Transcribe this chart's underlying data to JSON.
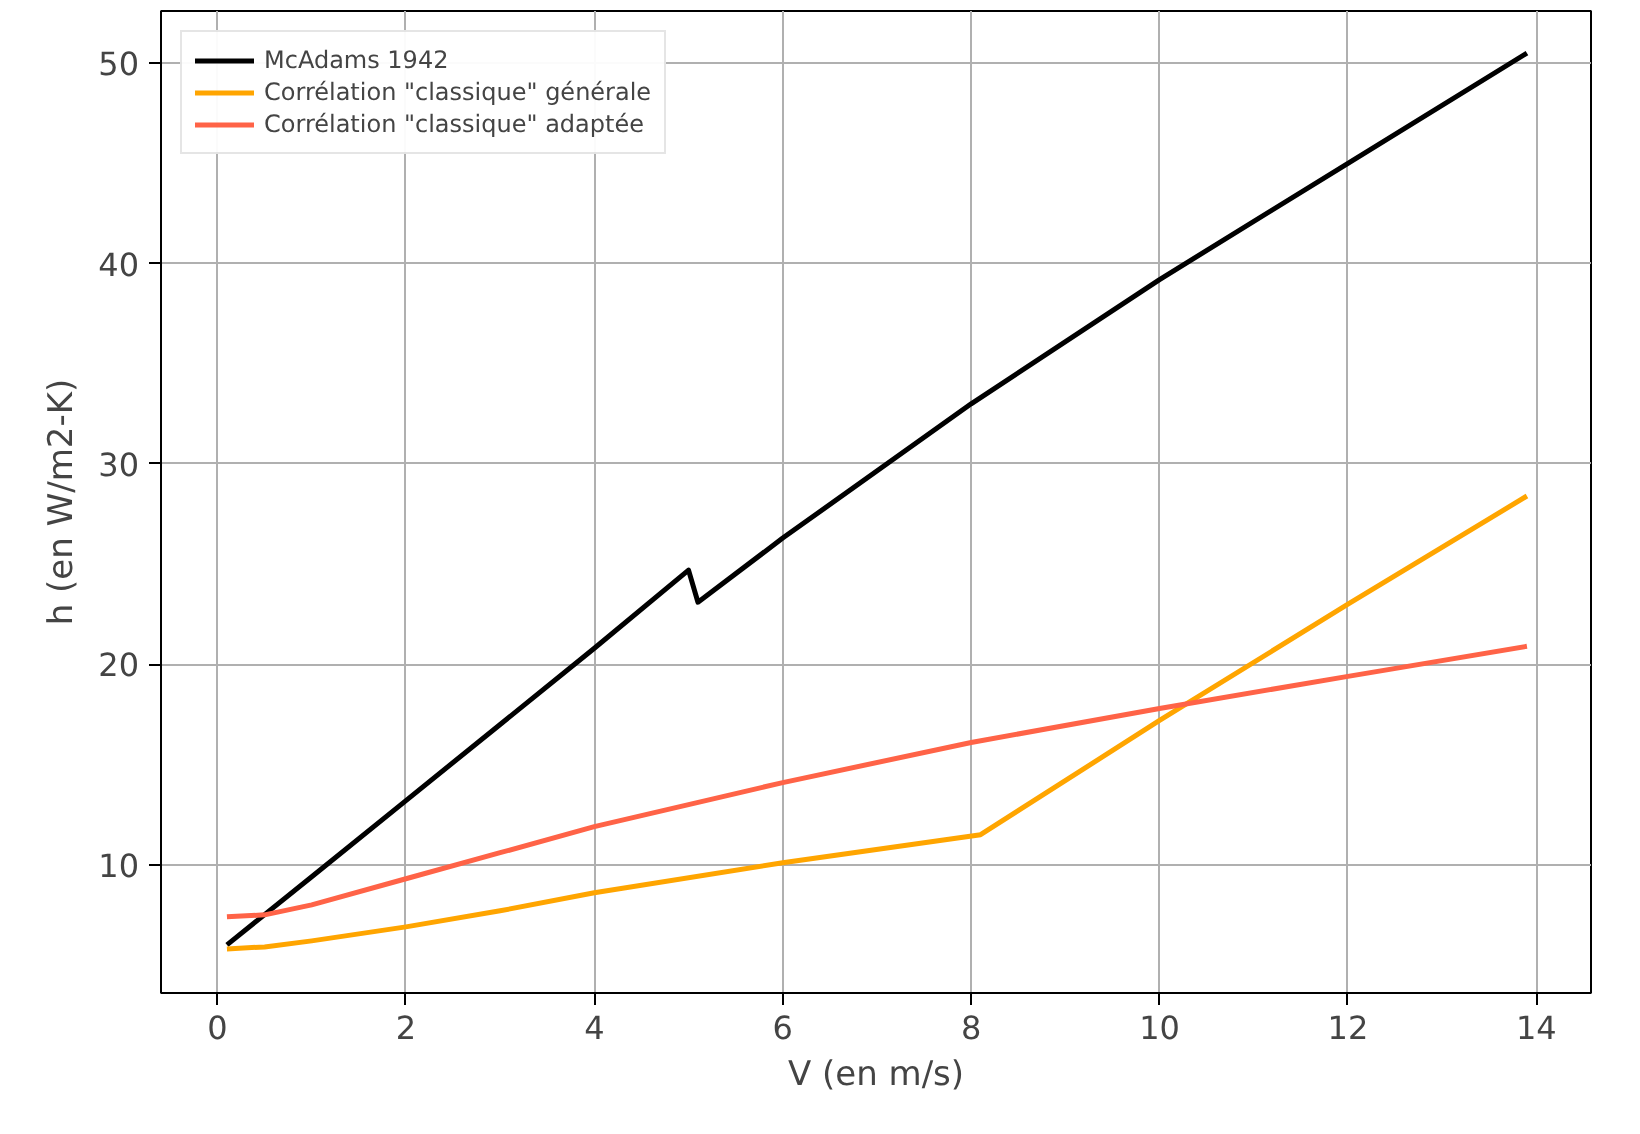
{
  "chart_data": {
    "type": "line",
    "xlabel": "V (en m/s)",
    "ylabel": "h (en W/m2-K)",
    "xlim": [
      -0.6,
      14.58
    ],
    "ylim": [
      3.6,
      52.6
    ],
    "xticks": [
      0,
      2,
      4,
      6,
      8,
      10,
      12,
      14
    ],
    "yticks": [
      10,
      20,
      30,
      40,
      50
    ],
    "grid": true,
    "legend": "top left",
    "line_style": "solid",
    "series": [
      {
        "name": "McAdams 1942",
        "color": "#000000",
        "x": [
          0.1,
          1,
          2,
          3,
          4,
          5,
          5.1,
          6,
          8,
          10,
          12,
          13.9
        ],
        "values": [
          6.0,
          9.4,
          13.2,
          17,
          20.8,
          24.7,
          23.1,
          26.3,
          33,
          39.2,
          45,
          50.5
        ]
      },
      {
        "name": "Corrélation \"classique\" générale",
        "color": "#ffa500",
        "x": [
          0.1,
          0.5,
          1,
          2,
          3,
          4,
          6,
          8.1,
          10,
          12,
          13.9
        ],
        "values": [
          5.8,
          5.9,
          6.2,
          6.9,
          7.7,
          8.6,
          10.1,
          11.5,
          17.2,
          23,
          28.4
        ]
      },
      {
        "name": "Corrélation \"classique\" adaptée",
        "color": "#ff6347",
        "x": [
          0.1,
          0.5,
          1,
          2,
          3,
          4,
          6,
          8,
          10,
          12,
          13.9
        ],
        "values": [
          7.4,
          7.5,
          8,
          9.3,
          10.6,
          11.9,
          14.1,
          16.1,
          17.8,
          19.4,
          20.9
        ]
      }
    ]
  }
}
